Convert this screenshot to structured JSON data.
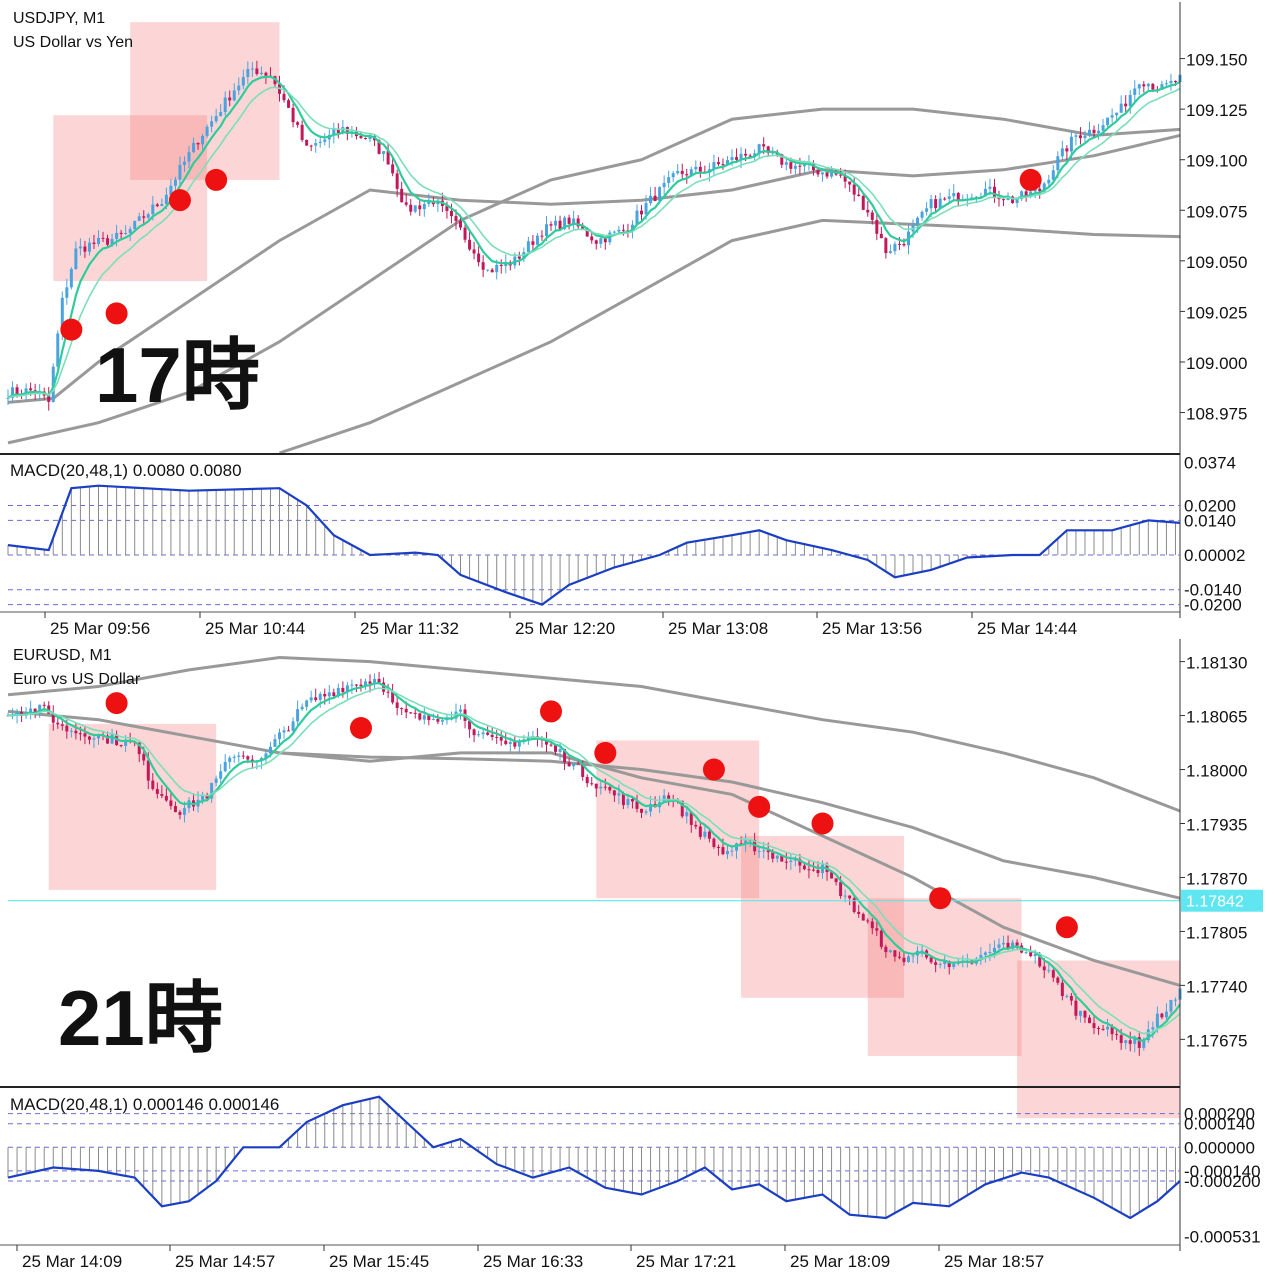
{
  "chart_data": [
    {
      "type": "candlestick",
      "title": "USDJPY, M1",
      "subtitle": "US Dollar vs Yen",
      "annotation": "17時",
      "y_ticks": [
        "109.150",
        "109.125",
        "109.100",
        "109.075",
        "109.050",
        "109.025",
        "109.000",
        "108.975"
      ],
      "ylim": [
        108.955,
        109.175
      ],
      "x_ticks": [
        "25 Mar 09:56",
        "25 Mar 10:44",
        "25 Mar 11:32",
        "25 Mar 12:20",
        "25 Mar 13:08",
        "25 Mar 13:56",
        "25 Mar 14:44"
      ],
      "close_path": [
        [
          0,
          108.985
        ],
        [
          6,
          108.986
        ],
        [
          9,
          108.98
        ],
        [
          12,
          109.03
        ],
        [
          15,
          109.055
        ],
        [
          18,
          109.058
        ],
        [
          22,
          109.06
        ],
        [
          26,
          109.063
        ],
        [
          30,
          109.072
        ],
        [
          34,
          109.08
        ],
        [
          38,
          109.095
        ],
        [
          42,
          109.11
        ],
        [
          46,
          109.122
        ],
        [
          50,
          109.135
        ],
        [
          54,
          109.145
        ],
        [
          58,
          109.142
        ],
        [
          62,
          109.125
        ],
        [
          66,
          109.105
        ],
        [
          70,
          109.11
        ],
        [
          74,
          109.115
        ],
        [
          80,
          109.11
        ],
        [
          84,
          109.1
        ],
        [
          88,
          109.075
        ],
        [
          94,
          109.08
        ],
        [
          100,
          109.065
        ],
        [
          106,
          109.045
        ],
        [
          112,
          109.05
        ],
        [
          118,
          109.065
        ],
        [
          124,
          109.07
        ],
        [
          130,
          109.06
        ],
        [
          136,
          109.065
        ],
        [
          142,
          109.08
        ],
        [
          148,
          109.093
        ],
        [
          154,
          109.095
        ],
        [
          160,
          109.1
        ],
        [
          166,
          109.105
        ],
        [
          172,
          109.098
        ],
        [
          178,
          109.095
        ],
        [
          184,
          109.092
        ],
        [
          190,
          109.075
        ],
        [
          194,
          109.055
        ],
        [
          198,
          109.06
        ],
        [
          204,
          109.078
        ],
        [
          210,
          109.082
        ],
        [
          216,
          109.085
        ],
        [
          222,
          109.08
        ],
        [
          228,
          109.085
        ],
        [
          232,
          109.1
        ],
        [
          236,
          109.112
        ],
        [
          240,
          109.115
        ],
        [
          246,
          109.125
        ],
        [
          250,
          109.14
        ],
        [
          255,
          109.135
        ],
        [
          259,
          109.14
        ]
      ],
      "markers": [
        [
          14,
          109.016
        ],
        [
          24,
          109.024
        ],
        [
          38,
          109.08
        ],
        [
          46,
          109.09
        ],
        [
          226,
          109.09
        ]
      ],
      "highlight_boxes": [
        [
          10,
          109.04,
          44,
          109.122
        ],
        [
          27,
          109.09,
          60,
          109.168
        ]
      ],
      "overlay_lines": [
        {
          "name": "upper",
          "color": "#999999",
          "points": [
            [
              0,
              108.96
            ],
            [
              20,
              108.97
            ],
            [
              40,
              108.985
            ],
            [
              60,
              109.01
            ],
            [
              80,
              109.04
            ],
            [
              100,
              109.07
            ],
            [
              120,
              109.09
            ],
            [
              140,
              109.1
            ],
            [
              160,
              109.12
            ],
            [
              180,
              109.125
            ],
            [
              200,
              109.125
            ],
            [
              220,
              109.12
            ],
            [
              240,
              109.112
            ],
            [
              259,
              109.115
            ]
          ]
        },
        {
          "name": "mid",
          "color": "#999999",
          "points": [
            [
              0,
              108.98
            ],
            [
              10,
              108.982
            ],
            [
              20,
              109.0
            ],
            [
              40,
              109.03
            ],
            [
              60,
              109.06
            ],
            [
              80,
              109.085
            ],
            [
              100,
              109.08
            ],
            [
              120,
              109.078
            ],
            [
              140,
              109.08
            ],
            [
              160,
              109.085
            ],
            [
              180,
              109.095
            ],
            [
              200,
              109.092
            ],
            [
              220,
              109.095
            ],
            [
              240,
              109.102
            ],
            [
              259,
              109.112
            ]
          ]
        },
        {
          "name": "lower",
          "color": "#999999",
          "points": [
            [
              60,
              108.955
            ],
            [
              80,
              108.97
            ],
            [
              100,
              108.99
            ],
            [
              120,
              109.01
            ],
            [
              140,
              109.035
            ],
            [
              160,
              109.06
            ],
            [
              180,
              109.07
            ],
            [
              200,
              109.068
            ],
            [
              220,
              109.066
            ],
            [
              240,
              109.063
            ],
            [
              259,
              109.062
            ]
          ]
        }
      ],
      "macd": {
        "label": "MACD(20,48,1) 0.0080 0.0080",
        "y_ticks": [
          "0.0374",
          "0.0200",
          "0.0140",
          "0.00002",
          "-0.0140",
          "-0.0200"
        ],
        "ylim": [
          -0.023,
          0.04
        ],
        "levels": [
          0.02,
          0.014,
          0.0,
          -0.014,
          -0.02
        ],
        "points": [
          [
            0,
            0.004
          ],
          [
            9,
            0.002
          ],
          [
            14,
            0.027
          ],
          [
            20,
            0.028
          ],
          [
            40,
            0.026
          ],
          [
            60,
            0.027
          ],
          [
            66,
            0.02
          ],
          [
            72,
            0.008
          ],
          [
            80,
            0.0
          ],
          [
            90,
            0.001
          ],
          [
            95,
            0.0
          ],
          [
            100,
            -0.008
          ],
          [
            110,
            -0.015
          ],
          [
            118,
            -0.02
          ],
          [
            124,
            -0.012
          ],
          [
            134,
            -0.005
          ],
          [
            144,
            0.0
          ],
          [
            150,
            0.005
          ],
          [
            160,
            0.008
          ],
          [
            166,
            0.01
          ],
          [
            172,
            0.006
          ],
          [
            182,
            0.002
          ],
          [
            190,
            -0.002
          ],
          [
            196,
            -0.009
          ],
          [
            204,
            -0.006
          ],
          [
            212,
            -0.001
          ],
          [
            222,
            0.0
          ],
          [
            228,
            0.0
          ],
          [
            234,
            0.01
          ],
          [
            244,
            0.01
          ],
          [
            252,
            0.014
          ],
          [
            259,
            0.013
          ]
        ]
      }
    },
    {
      "type": "candlestick",
      "title": "EURUSD, M1",
      "subtitle": "Euro vs US Dollar",
      "annotation": "21時",
      "current_price": "1.17842",
      "y_ticks": [
        "1.18130",
        "1.18065",
        "1.18000",
        "1.17935",
        "1.17870",
        "1.17805",
        "1.17740",
        "1.17675"
      ],
      "ylim": [
        1.1762,
        1.1815
      ],
      "x_ticks": [
        "25 Mar 14:09",
        "25 Mar 14:57",
        "25 Mar 15:45",
        "25 Mar 16:33",
        "25 Mar 17:21",
        "25 Mar 18:09",
        "25 Mar 18:57"
      ],
      "close_path": [
        [
          0,
          1.1807
        ],
        [
          8,
          1.18072
        ],
        [
          12,
          1.1805
        ],
        [
          20,
          1.1804
        ],
        [
          28,
          1.1803
        ],
        [
          32,
          1.1798
        ],
        [
          38,
          1.1795
        ],
        [
          44,
          1.1797
        ],
        [
          50,
          1.1802
        ],
        [
          56,
          1.1801
        ],
        [
          60,
          1.1804
        ],
        [
          66,
          1.1808
        ],
        [
          74,
          1.181
        ],
        [
          82,
          1.1811
        ],
        [
          86,
          1.1807
        ],
        [
          92,
          1.1806
        ],
        [
          100,
          1.1807
        ],
        [
          104,
          1.1804
        ],
        [
          110,
          1.1803
        ],
        [
          116,
          1.1804
        ],
        [
          122,
          1.1802
        ],
        [
          128,
          1.1799
        ],
        [
          134,
          1.1797
        ],
        [
          140,
          1.1795
        ],
        [
          146,
          1.1797
        ],
        [
          152,
          1.1793
        ],
        [
          158,
          1.179
        ],
        [
          164,
          1.1791
        ],
        [
          172,
          1.1789
        ],
        [
          180,
          1.1788
        ],
        [
          186,
          1.1784
        ],
        [
          192,
          1.178
        ],
        [
          196,
          1.1777
        ],
        [
          202,
          1.1778
        ],
        [
          208,
          1.1776
        ],
        [
          214,
          1.1777
        ],
        [
          220,
          1.1779
        ],
        [
          226,
          1.1778
        ],
        [
          232,
          1.1774
        ],
        [
          236,
          1.1771
        ],
        [
          244,
          1.1768
        ],
        [
          250,
          1.1767
        ],
        [
          254,
          1.177
        ],
        [
          259,
          1.1773
        ]
      ],
      "markers": [
        [
          24,
          1.1808
        ],
        [
          78,
          1.1805
        ],
        [
          120,
          1.1807
        ],
        [
          132,
          1.1802
        ],
        [
          156,
          1.18
        ],
        [
          166,
          1.17955
        ],
        [
          180,
          1.17935
        ],
        [
          206,
          1.17845
        ],
        [
          234,
          1.1781
        ]
      ],
      "highlight_boxes": [
        [
          9,
          1.17855,
          46,
          1.18055
        ],
        [
          130,
          1.17845,
          166,
          1.18035
        ],
        [
          162,
          1.17725,
          198,
          1.1792
        ],
        [
          190,
          1.17655,
          224,
          1.17845
        ],
        [
          223,
          1.1758,
          259,
          1.1777
        ]
      ],
      "overlay_lines": [
        {
          "name": "upper",
          "color": "#999999",
          "points": [
            [
              0,
              1.1809
            ],
            [
              20,
              1.181
            ],
            [
              40,
              1.1812
            ],
            [
              60,
              1.18135
            ],
            [
              80,
              1.1813
            ],
            [
              100,
              1.1812
            ],
            [
              120,
              1.1811
            ],
            [
              140,
              1.181
            ],
            [
              160,
              1.1808
            ],
            [
              180,
              1.1806
            ],
            [
              200,
              1.18045
            ],
            [
              220,
              1.1802
            ],
            [
              240,
              1.1799
            ],
            [
              259,
              1.1795
            ]
          ]
        },
        {
          "name": "mid",
          "color": "#999999",
          "points": [
            [
              0,
              1.1807
            ],
            [
              20,
              1.1806
            ],
            [
              40,
              1.1804
            ],
            [
              60,
              1.1802
            ],
            [
              80,
              1.1801
            ],
            [
              100,
              1.1802
            ],
            [
              120,
              1.1802
            ],
            [
              140,
              1.1799
            ],
            [
              160,
              1.1797
            ],
            [
              180,
              1.1792
            ],
            [
              200,
              1.1787
            ],
            [
              220,
              1.1781
            ],
            [
              240,
              1.1777
            ],
            [
              259,
              1.1774
            ]
          ]
        },
        {
          "name": "lower",
          "color": "#999999",
          "points": [
            [
              60,
              1.1802
            ],
            [
              80,
              1.18015
            ],
            [
              100,
              1.18013
            ],
            [
              120,
              1.1801
            ],
            [
              140,
              1.18
            ],
            [
              160,
              1.17985
            ],
            [
              180,
              1.1796
            ],
            [
              200,
              1.1793
            ],
            [
              220,
              1.1789
            ],
            [
              240,
              1.1787
            ],
            [
              259,
              1.17845
            ]
          ]
        }
      ],
      "macd": {
        "label": "MACD(20,48,1) 0.000146 0.000146",
        "y_ticks": [
          "0.000200",
          "0.000140",
          "0.000000",
          "-0.000140",
          "-0.000200",
          "-0.000531"
        ],
        "ylim": [
          -0.00058,
          0.00034
        ],
        "levels": [
          0.0002,
          0.00014,
          0.0,
          -0.00014,
          -0.0002
        ],
        "points": [
          [
            0,
            -0.00018
          ],
          [
            10,
            -0.00012
          ],
          [
            20,
            -0.00014
          ],
          [
            28,
            -0.00018
          ],
          [
            34,
            -0.00035
          ],
          [
            40,
            -0.00032
          ],
          [
            46,
            -0.0002
          ],
          [
            52,
            0.0
          ],
          [
            60,
            0.0
          ],
          [
            66,
            0.00015
          ],
          [
            74,
            0.00025
          ],
          [
            82,
            0.0003
          ],
          [
            88,
            0.00015
          ],
          [
            94,
            0.0
          ],
          [
            100,
            5e-05
          ],
          [
            108,
            -0.0001
          ],
          [
            116,
            -0.00018
          ],
          [
            124,
            -0.00012
          ],
          [
            132,
            -0.00024
          ],
          [
            140,
            -0.00028
          ],
          [
            148,
            -0.0002
          ],
          [
            154,
            -0.00012
          ],
          [
            160,
            -0.00025
          ],
          [
            166,
            -0.00022
          ],
          [
            172,
            -0.00032
          ],
          [
            180,
            -0.00028
          ],
          [
            186,
            -0.0004
          ],
          [
            194,
            -0.00042
          ],
          [
            200,
            -0.00033
          ],
          [
            208,
            -0.00035
          ],
          [
            216,
            -0.00022
          ],
          [
            224,
            -0.00015
          ],
          [
            230,
            -0.00018
          ],
          [
            240,
            -0.0003
          ],
          [
            248,
            -0.00042
          ],
          [
            254,
            -0.00032
          ],
          [
            259,
            -0.0002
          ]
        ]
      }
    }
  ]
}
